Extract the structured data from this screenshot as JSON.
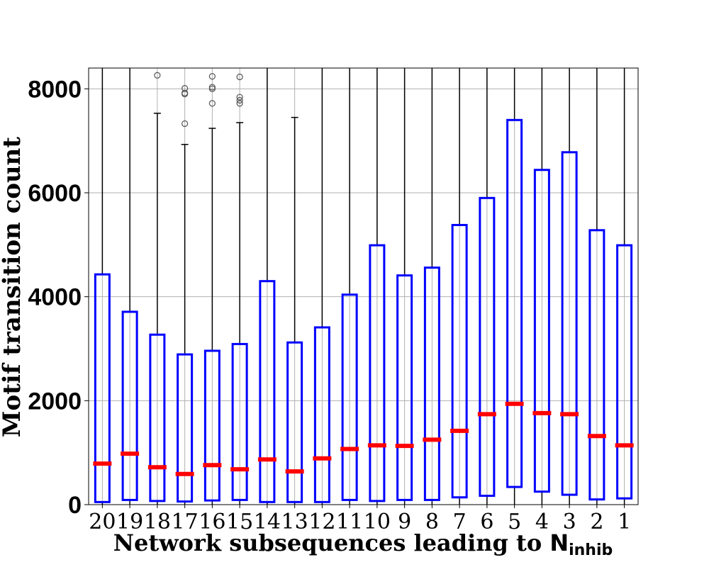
{
  "chart_data": {
    "type": "box",
    "title": "",
    "xlabel": "Network subsequences leading to ",
    "xlabel_symbol": "N",
    "xlabel_subscript": "inhib",
    "ylabel": "Motif transition count",
    "ylim": [
      0,
      8400
    ],
    "yticks": [
      0,
      2000,
      4000,
      6000,
      8000
    ],
    "ytick_labels": [
      "0",
      "2000",
      "4000",
      "6000",
      "8000"
    ],
    "grid": true,
    "box_color": "#0000ff",
    "median_color": "#ff0000",
    "whisker_color": "#000000",
    "flier_color": "#555555",
    "categories": [
      "20",
      "19",
      "18",
      "17",
      "16",
      "15",
      "14",
      "13",
      "12",
      "11",
      "10",
      "9",
      "8",
      "7",
      "6",
      "5",
      "4",
      "3",
      "2",
      "1"
    ],
    "boxes": [
      {
        "label": "20",
        "q1": 50,
        "median": 790,
        "q3": 4430,
        "whisker_low": 0,
        "whisker_high": 8400,
        "fliers": []
      },
      {
        "label": "19",
        "q1": 90,
        "median": 980,
        "q3": 3710,
        "whisker_low": 0,
        "whisker_high": 8400,
        "fliers": []
      },
      {
        "label": "18",
        "q1": 70,
        "median": 720,
        "q3": 3270,
        "whisker_low": 0,
        "whisker_high": 7530,
        "fliers": [
          8260
        ]
      },
      {
        "label": "17",
        "q1": 60,
        "median": 590,
        "q3": 2890,
        "whisker_low": 0,
        "whisker_high": 6930,
        "fliers": [
          7330,
          7900,
          7920,
          8010
        ]
      },
      {
        "label": "16",
        "q1": 80,
        "median": 760,
        "q3": 2960,
        "whisker_low": 0,
        "whisker_high": 7240,
        "fliers": [
          7720,
          8000,
          8030,
          8240
        ]
      },
      {
        "label": "15",
        "q1": 90,
        "median": 680,
        "q3": 3090,
        "whisker_low": 0,
        "whisker_high": 7350,
        "fliers": [
          7720,
          7780,
          7840,
          8230
        ]
      },
      {
        "label": "14",
        "q1": 50,
        "median": 870,
        "q3": 4300,
        "whisker_low": 0,
        "whisker_high": 8400,
        "fliers": []
      },
      {
        "label": "13",
        "q1": 50,
        "median": 640,
        "q3": 3120,
        "whisker_low": 0,
        "whisker_high": 7450,
        "fliers": []
      },
      {
        "label": "12",
        "q1": 50,
        "median": 890,
        "q3": 3410,
        "whisker_low": 0,
        "whisker_high": 8400,
        "fliers": []
      },
      {
        "label": "11",
        "q1": 90,
        "median": 1070,
        "q3": 4040,
        "whisker_low": 0,
        "whisker_high": 8400,
        "fliers": []
      },
      {
        "label": "10",
        "q1": 70,
        "median": 1140,
        "q3": 4990,
        "whisker_low": 0,
        "whisker_high": 8400,
        "fliers": []
      },
      {
        "label": "9",
        "q1": 90,
        "median": 1130,
        "q3": 4410,
        "whisker_low": 0,
        "whisker_high": 8400,
        "fliers": []
      },
      {
        "label": "8",
        "q1": 90,
        "median": 1250,
        "q3": 4560,
        "whisker_low": 0,
        "whisker_high": 8400,
        "fliers": []
      },
      {
        "label": "7",
        "q1": 140,
        "median": 1420,
        "q3": 5380,
        "whisker_low": 0,
        "whisker_high": 8400,
        "fliers": []
      },
      {
        "label": "6",
        "q1": 170,
        "median": 1740,
        "q3": 5900,
        "whisker_low": 0,
        "whisker_high": 8400,
        "fliers": []
      },
      {
        "label": "5",
        "q1": 340,
        "median": 1940,
        "q3": 7400,
        "whisker_low": 0,
        "whisker_high": 8400,
        "fliers": []
      },
      {
        "label": "4",
        "q1": 250,
        "median": 1760,
        "q3": 6440,
        "whisker_low": 0,
        "whisker_high": 8400,
        "fliers": []
      },
      {
        "label": "3",
        "q1": 190,
        "median": 1740,
        "q3": 6780,
        "whisker_low": 0,
        "whisker_high": 8400,
        "fliers": []
      },
      {
        "label": "2",
        "q1": 100,
        "median": 1320,
        "q3": 5280,
        "whisker_low": 0,
        "whisker_high": 8400,
        "fliers": []
      },
      {
        "label": "1",
        "q1": 120,
        "median": 1140,
        "q3": 4990,
        "whisker_low": 0,
        "whisker_high": 8400,
        "fliers": []
      }
    ]
  }
}
